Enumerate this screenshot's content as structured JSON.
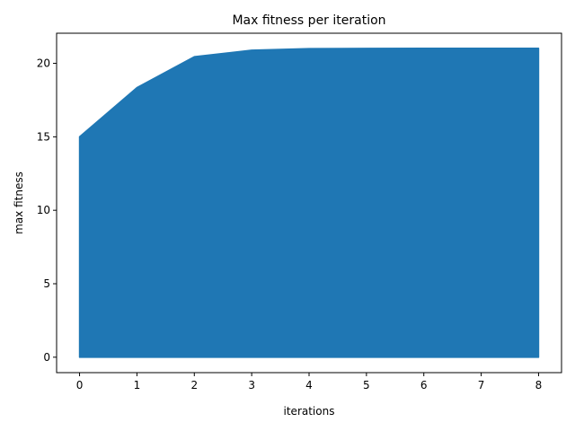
{
  "chart_data": {
    "type": "area",
    "title": "Max fitness per iteration",
    "xlabel": "iterations",
    "ylabel": "max fitness",
    "x": [
      0,
      1,
      2,
      3,
      4,
      5,
      6,
      7,
      8
    ],
    "series": [
      {
        "values": [
          15.0,
          18.35,
          20.45,
          20.9,
          21.0,
          21.02,
          21.03,
          21.03,
          21.03
        ],
        "color": "#1f77b4"
      }
    ],
    "xlim": [
      -0.4,
      8.4
    ],
    "ylim": [
      -1.05,
      22.05
    ],
    "x_ticks": [
      0,
      1,
      2,
      3,
      4,
      5,
      6,
      7,
      8
    ],
    "y_ticks": [
      0,
      5,
      10,
      15,
      20
    ],
    "grid": false,
    "legend": "none"
  }
}
